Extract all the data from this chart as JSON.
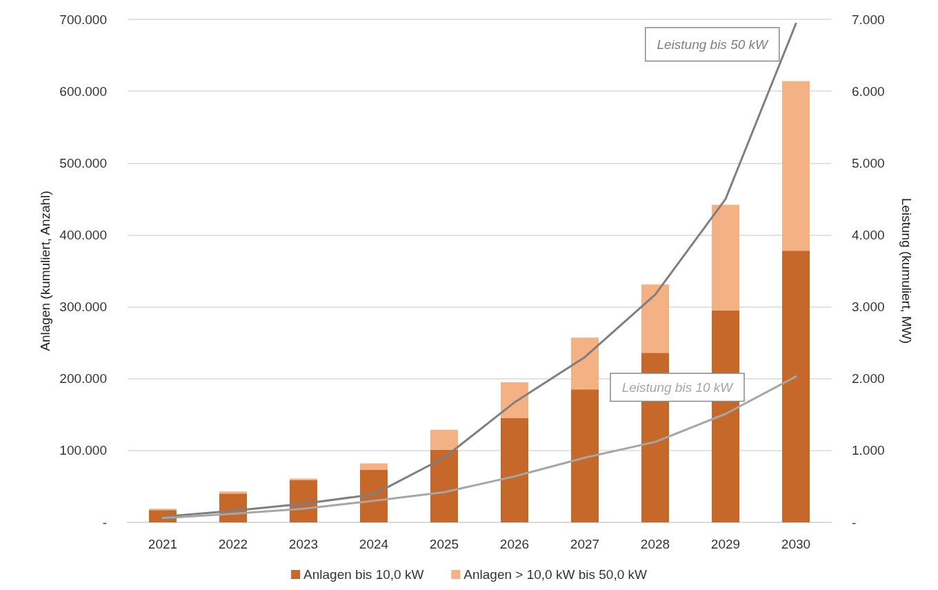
{
  "chart_data": {
    "type": "bar",
    "stacked": true,
    "ylabel": "Anlagen (kumuliert, Anzahl)",
    "y2label": "Leistung (kumuliert, MW)",
    "categories": [
      "2021",
      "2022",
      "2023",
      "2024",
      "2025",
      "2026",
      "2027",
      "2028",
      "2029",
      "2030"
    ],
    "series": [
      {
        "name": "Anlagen bis 10,0 kW",
        "color": "#c5682a",
        "values": [
          17000,
          40000,
          59000,
          73000,
          101000,
          145000,
          185000,
          236000,
          295000,
          378000
        ]
      },
      {
        "name": "Anlagen > 10,0 kW bis 50,0 kW",
        "color": "#f4b183",
        "values": [
          2000,
          3000,
          2000,
          9000,
          28000,
          50000,
          72000,
          95000,
          147000,
          236000
        ]
      },
      {
        "name": "Leistung bis 50 kW",
        "type": "line",
        "axis": "y2",
        "color": "#7f7f7f",
        "values": [
          80,
          160,
          260,
          390,
          900,
          1670,
          2300,
          3170,
          4500,
          6940
        ]
      },
      {
        "name": "Leistung bis 10 kW",
        "type": "line",
        "axis": "y2",
        "color": "#a6a6a6",
        "values": [
          60,
          120,
          190,
          300,
          420,
          640,
          900,
          1120,
          1510,
          2030
        ]
      }
    ],
    "ylim": [
      0,
      700000
    ],
    "yticks": [
      {
        "value": 0,
        "label": "-"
      },
      {
        "value": 100000,
        "label": "100.000"
      },
      {
        "value": 200000,
        "label": "200.000"
      },
      {
        "value": 300000,
        "label": "300.000"
      },
      {
        "value": 400000,
        "label": "400.000"
      },
      {
        "value": 500000,
        "label": "500.000"
      },
      {
        "value": 600000,
        "label": "600.000"
      },
      {
        "value": 700000,
        "label": "700.000"
      }
    ],
    "y2lim": [
      0,
      7000
    ],
    "y2ticks": [
      {
        "value": 0,
        "label": "-"
      },
      {
        "value": 1000,
        "label": "1.000"
      },
      {
        "value": 2000,
        "label": "2.000"
      },
      {
        "value": 3000,
        "label": "3.000"
      },
      {
        "value": 4000,
        "label": "4.000"
      },
      {
        "value": 5000,
        "label": "5.000"
      },
      {
        "value": 6000,
        "label": "6.000"
      },
      {
        "value": 7000,
        "label": "7.000"
      }
    ],
    "grid": "y",
    "legend": "bottom",
    "marker": "none"
  }
}
